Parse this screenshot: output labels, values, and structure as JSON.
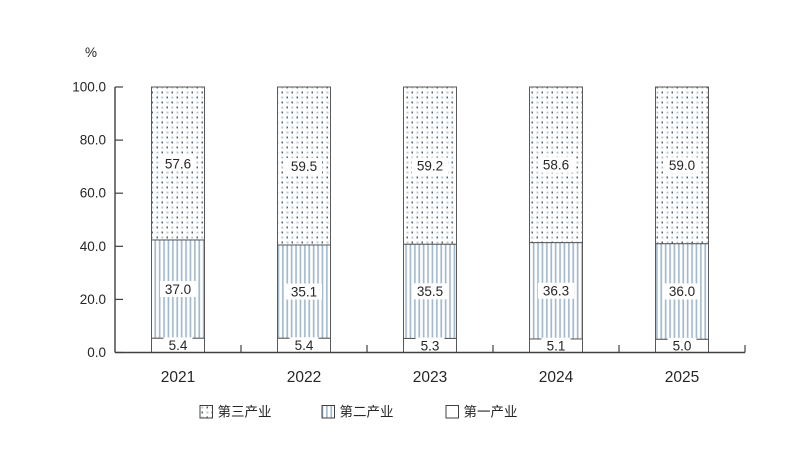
{
  "chart_data": {
    "type": "bar",
    "stacked": true,
    "title": "",
    "unit_label": "%",
    "categories": [
      "2021",
      "2022",
      "2023",
      "2024",
      "2025"
    ],
    "series": [
      {
        "name": "第一产业",
        "pattern": "plain",
        "values": [
          5.4,
          5.4,
          5.3,
          5.1,
          5.0
        ]
      },
      {
        "name": "第二产业",
        "pattern": "vertical-stripes",
        "values": [
          37.0,
          35.1,
          35.5,
          36.3,
          36.0
        ]
      },
      {
        "name": "第三产业",
        "pattern": "dots",
        "values": [
          57.6,
          59.5,
          59.2,
          58.6,
          59.0
        ]
      }
    ],
    "data_labels": {
      "第一产业": [
        "5.4",
        "5.4",
        "5.3",
        "5.1",
        "5.0"
      ],
      "第二产业": [
        "37.0",
        "35.1",
        "35.5",
        "36.3",
        "36.0"
      ],
      "第三产业": [
        "57.6",
        "59.5",
        "59.2",
        "58.6",
        "59.0"
      ]
    },
    "legend_order": [
      "第三产业",
      "第二产业",
      "第一产业"
    ],
    "legend_position": "bottom",
    "grid": false,
    "ylim": [
      0,
      100
    ],
    "yticks": [
      0,
      20,
      40,
      60,
      80,
      100
    ],
    "ytick_labels": [
      "0.0",
      "20.0",
      "40.0",
      "60.0",
      "80.0",
      "100.0"
    ],
    "colors": {
      "background": "#ffffff",
      "axis": "#404040",
      "bar_border": "#595959",
      "text": "#262626",
      "stripe": "#a4bacd",
      "dot_dark": "#55606a",
      "dot_light": "#b7c9d6",
      "plain_fill": "#ffffff"
    }
  }
}
